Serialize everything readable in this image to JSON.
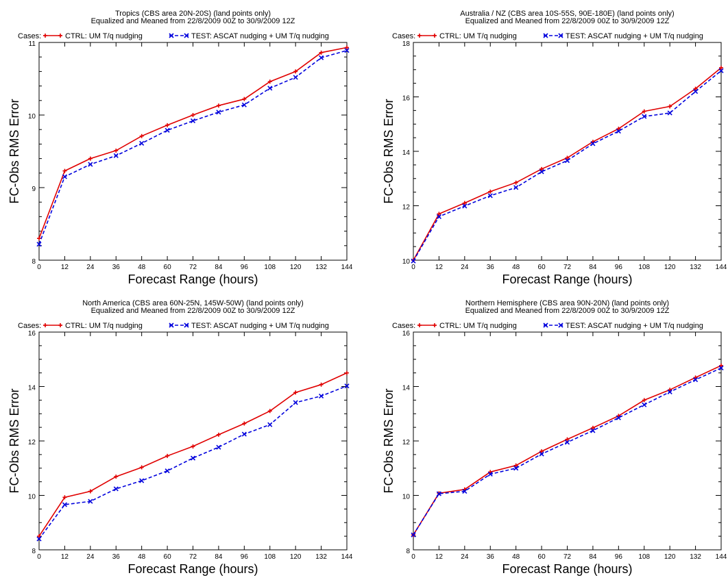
{
  "colors": {
    "ctrl": "#e00000",
    "test": "#0000dd",
    "axis": "#000000"
  },
  "legend": {
    "prefix": "Cases:",
    "ctrl_marker": "plus",
    "test_marker": "x"
  },
  "chart_data": [
    {
      "type": "line",
      "title": "Tropics (CBS area 20N-20S) (land points only)",
      "subtitle": "Equalized and Meaned from 22/8/2009 00Z to 30/9/2009 12Z",
      "xlabel": "Forecast Range (hours)",
      "ylabel": "FC-Obs RMS Error",
      "xlim": [
        0,
        144
      ],
      "ylim": [
        8,
        11
      ],
      "xticks": [
        0,
        12,
        24,
        36,
        48,
        60,
        72,
        84,
        96,
        108,
        120,
        132,
        144
      ],
      "yticks": [
        8,
        9,
        10,
        11
      ],
      "yminor": [
        8.2,
        8.4,
        8.6,
        8.8,
        9.2,
        9.4,
        9.6,
        9.8,
        10.2,
        10.4,
        10.6,
        10.8
      ],
      "x": [
        0,
        12,
        24,
        36,
        48,
        60,
        72,
        84,
        96,
        108,
        120,
        132,
        144
      ],
      "series": [
        {
          "name": "CTRL: UM T/q nudging",
          "key": "ctrl",
          "values": [
            8.3,
            9.23,
            9.4,
            9.51,
            9.71,
            9.86,
            10.0,
            10.13,
            10.22,
            10.46,
            10.6,
            10.86,
            10.93
          ]
        },
        {
          "name": "TEST: ASCAT nudging + UM T/q nudging",
          "key": "test",
          "values": [
            8.22,
            9.15,
            9.32,
            9.44,
            9.61,
            9.79,
            9.92,
            10.04,
            10.14,
            10.37,
            10.52,
            10.79,
            10.89
          ]
        }
      ]
    },
    {
      "type": "line",
      "title": "Australia / NZ (CBS area 10S-55S, 90E-180E) (land points only)",
      "subtitle": "Equalized and Meaned from 22/8/2009 00Z to 30/9/2009 12Z",
      "xlabel": "Forecast Range (hours)",
      "ylabel": "FC-Obs RMS Error",
      "xlim": [
        0,
        144
      ],
      "ylim": [
        10,
        18
      ],
      "xticks": [
        0,
        12,
        24,
        36,
        48,
        60,
        72,
        84,
        96,
        108,
        120,
        132,
        144
      ],
      "yticks": [
        10,
        12,
        14,
        16,
        18
      ],
      "yminor": [
        10.5,
        11,
        11.5,
        12.5,
        13,
        13.5,
        14.5,
        15,
        15.5,
        16.5,
        17,
        17.5
      ],
      "x": [
        0,
        12,
        24,
        36,
        48,
        60,
        72,
        84,
        96,
        108,
        120,
        132,
        144
      ],
      "series": [
        {
          "name": "CTRL: UM T/q nudging",
          "key": "ctrl",
          "values": [
            10.0,
            11.7,
            12.1,
            12.52,
            12.85,
            13.35,
            13.76,
            14.35,
            14.83,
            15.47,
            15.65,
            16.3,
            17.07
          ]
        },
        {
          "name": "TEST: ASCAT nudging + UM T/q nudging",
          "key": "test",
          "values": [
            9.97,
            11.6,
            11.99,
            12.37,
            12.67,
            13.25,
            13.66,
            14.28,
            14.74,
            15.28,
            15.41,
            16.2,
            16.96
          ]
        }
      ]
    },
    {
      "type": "line",
      "title": "North America (CBS area 60N-25N, 145W-50W) (land points only)",
      "subtitle": "Equalized and Meaned from 22/8/2009 00Z to 30/9/2009 12Z",
      "xlabel": "Forecast Range (hours)",
      "ylabel": "FC-Obs RMS Error",
      "xlim": [
        0,
        144
      ],
      "ylim": [
        8,
        16
      ],
      "xticks": [
        0,
        12,
        24,
        36,
        48,
        60,
        72,
        84,
        96,
        108,
        120,
        132,
        144
      ],
      "yticks": [
        8,
        10,
        12,
        14,
        16
      ],
      "yminor": [
        8.5,
        9,
        9.5,
        10.5,
        11,
        11.5,
        12.5,
        13,
        13.5,
        14.5,
        15,
        15.5
      ],
      "x": [
        0,
        12,
        24,
        36,
        48,
        60,
        72,
        84,
        96,
        108,
        120,
        132,
        144
      ],
      "series": [
        {
          "name": "CTRL: UM T/q nudging",
          "key": "ctrl",
          "values": [
            8.5,
            9.93,
            10.15,
            10.69,
            11.03,
            11.45,
            11.8,
            12.23,
            12.64,
            13.1,
            13.78,
            14.07,
            14.5
          ]
        },
        {
          "name": "TEST: ASCAT nudging + UM T/q nudging",
          "key": "test",
          "values": [
            8.4,
            9.66,
            9.78,
            10.24,
            10.54,
            10.9,
            11.37,
            11.77,
            12.25,
            12.6,
            13.41,
            13.65,
            14.02
          ]
        }
      ]
    },
    {
      "type": "line",
      "title": "Northern Hemisphere (CBS area 90N-20N) (land points only)",
      "subtitle": "Equalized and Meaned from 22/8/2009 00Z to 30/9/2009 12Z",
      "xlabel": "Forecast Range (hours)",
      "ylabel": "FC-Obs RMS Error",
      "xlim": [
        0,
        144
      ],
      "ylim": [
        8,
        16
      ],
      "xticks": [
        0,
        12,
        24,
        36,
        48,
        60,
        72,
        84,
        96,
        108,
        120,
        132,
        144
      ],
      "yticks": [
        8,
        10,
        12,
        14,
        16
      ],
      "yminor": [
        8.5,
        9,
        9.5,
        10.5,
        11,
        11.5,
        12.5,
        13,
        13.5,
        14.5,
        15,
        15.5
      ],
      "x": [
        0,
        12,
        24,
        36,
        48,
        60,
        72,
        84,
        96,
        108,
        120,
        132,
        144
      ],
      "series": [
        {
          "name": "CTRL: UM T/q nudging",
          "key": "ctrl",
          "values": [
            8.55,
            10.08,
            10.22,
            10.86,
            11.1,
            11.62,
            12.06,
            12.48,
            12.92,
            13.5,
            13.88,
            14.33,
            14.77
          ]
        },
        {
          "name": "TEST: ASCAT nudging + UM T/q nudging",
          "key": "test",
          "values": [
            8.55,
            10.06,
            10.15,
            10.78,
            11.0,
            11.52,
            11.95,
            12.38,
            12.85,
            13.33,
            13.8,
            14.25,
            14.68
          ]
        }
      ]
    }
  ]
}
